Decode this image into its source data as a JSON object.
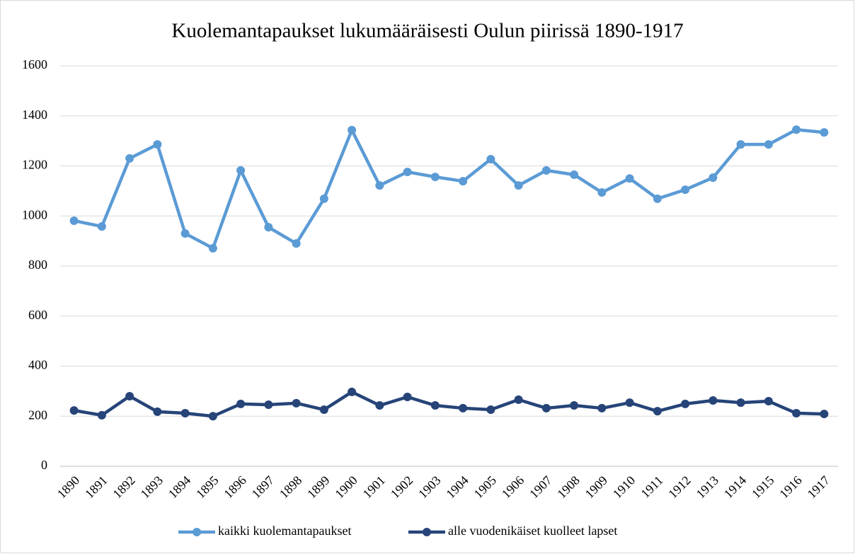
{
  "chart_data": {
    "type": "line",
    "title": "Kuolemantapaukset lukumääräisesti Oulun piirissä 1890-1917",
    "categories": [
      "1890",
      "1891",
      "1892",
      "1893",
      "1894",
      "1895",
      "1896",
      "1897",
      "1898",
      "1899",
      "1900",
      "1901",
      "1902",
      "1903",
      "1904",
      "1905",
      "1906",
      "1907",
      "1908",
      "1909",
      "1910",
      "1911",
      "1912",
      "1913",
      "1914",
      "1915",
      "1916",
      "1917"
    ],
    "series": [
      {
        "name": "kaikki kuolemantapaukset",
        "color": "#5b9bd5",
        "values": [
          981,
          958,
          1230,
          1286,
          930,
          871,
          1182,
          955,
          890,
          1069,
          1343,
          1122,
          1176,
          1156,
          1139,
          1227,
          1122,
          1182,
          1165,
          1094,
          1150,
          1069,
          1105,
          1153,
          1286,
          1286,
          1345,
          1334
        ]
      },
      {
        "name": "alle vuodenikäiset kuolleet lapset",
        "color": "#264478",
        "values": [
          223,
          204,
          280,
          218,
          212,
          200,
          249,
          246,
          252,
          226,
          297,
          243,
          277,
          243,
          232,
          226,
          266,
          232,
          243,
          232,
          254,
          220,
          249,
          263,
          254,
          260,
          212,
          209
        ]
      }
    ],
    "ylim": [
      0,
      1600
    ],
    "yticks": [
      0,
      200,
      400,
      600,
      800,
      1000,
      1200,
      1400,
      1600
    ],
    "grid": true,
    "legend": "bottom"
  }
}
